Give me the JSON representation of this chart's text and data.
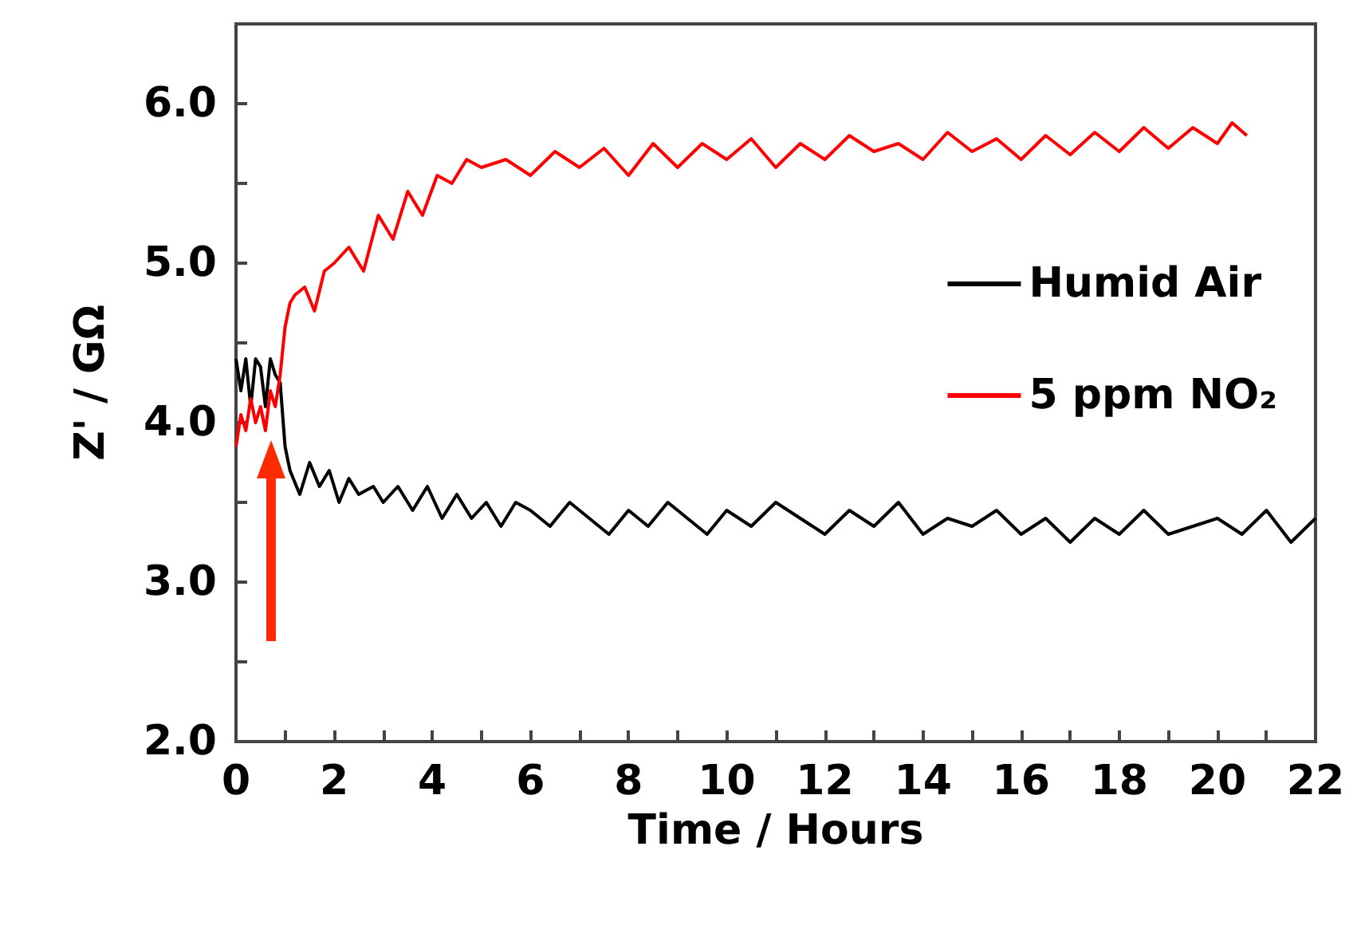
{
  "chart_data": {
    "type": "line",
    "xlabel": "Time / Hours",
    "ylabel": "Z' / GΩ",
    "xlim": [
      0,
      22
    ],
    "xticks": [
      0,
      {
        "value": 1,
        "label": null
      },
      2,
      {
        "value": 3,
        "label": null
      },
      4,
      {
        "value": 5,
        "label": null
      },
      6,
      {
        "value": 7,
        "label": null
      },
      8,
      {
        "value": 9,
        "label": null
      },
      10,
      {
        "value": 11,
        "label": null
      },
      12,
      {
        "value": 13,
        "label": null
      },
      14,
      {
        "value": 15,
        "label": null
      },
      16,
      {
        "value": 17,
        "label": null
      },
      18,
      {
        "value": 19,
        "label": null
      },
      20,
      {
        "value": 21,
        "label": null
      },
      22
    ],
    "ylim": [
      2,
      6.5
    ],
    "yticks": [
      {
        "value": 2,
        "label": "2.0"
      },
      {
        "value": 2.5,
        "label": null
      },
      {
        "value": 3,
        "label": "3.0"
      },
      {
        "value": 3.5,
        "label": null
      },
      {
        "value": 4,
        "label": "4.0"
      },
      {
        "value": 4.5,
        "label": null
      },
      {
        "value": 5,
        "label": "5.0"
      },
      {
        "value": 5.5,
        "label": null
      },
      {
        "value": 6,
        "label": "6.0"
      }
    ],
    "grid": false,
    "legend": "right",
    "marker": "none",
    "line_style": "solid",
    "series": [
      {
        "name": "Humid Air",
        "color": "#000000",
        "x": [
          0,
          0.1,
          0.2,
          0.3,
          0.4,
          0.5,
          0.6,
          0.7,
          0.8,
          0.9,
          1.0,
          1.1,
          1.3,
          1.5,
          1.7,
          1.9,
          2.1,
          2.3,
          2.5,
          2.8,
          3.0,
          3.3,
          3.6,
          3.9,
          4.2,
          4.5,
          4.8,
          5.1,
          5.4,
          5.7,
          6.0,
          6.4,
          6.8,
          7.2,
          7.6,
          8.0,
          8.4,
          8.8,
          9.2,
          9.6,
          10,
          10.5,
          11,
          11.5,
          12,
          12.5,
          13,
          13.5,
          14,
          14.5,
          15,
          15.5,
          16,
          16.5,
          17,
          17.5,
          18,
          18.5,
          19,
          19.5,
          20,
          20.5,
          21,
          21.5,
          22
        ],
        "values": [
          4.4,
          4.2,
          4.4,
          4.1,
          4.4,
          4.35,
          4.1,
          4.4,
          4.3,
          4.25,
          3.85,
          3.7,
          3.55,
          3.75,
          3.6,
          3.7,
          3.5,
          3.65,
          3.55,
          3.6,
          3.5,
          3.6,
          3.45,
          3.6,
          3.4,
          3.55,
          3.4,
          3.5,
          3.35,
          3.5,
          3.45,
          3.35,
          3.5,
          3.4,
          3.3,
          3.45,
          3.35,
          3.5,
          3.4,
          3.3,
          3.45,
          3.35,
          3.5,
          3.4,
          3.3,
          3.45,
          3.35,
          3.5,
          3.3,
          3.4,
          3.35,
          3.45,
          3.3,
          3.4,
          3.25,
          3.4,
          3.3,
          3.45,
          3.3,
          3.35,
          3.4,
          3.3,
          3.45,
          3.25,
          3.4
        ]
      },
      {
        "name": "5 ppm NO₂",
        "color": "#ff0000",
        "x": [
          0,
          0.1,
          0.2,
          0.3,
          0.4,
          0.5,
          0.6,
          0.7,
          0.8,
          0.9,
          1.0,
          1.1,
          1.2,
          1.4,
          1.6,
          1.8,
          2.0,
          2.3,
          2.6,
          2.9,
          3.2,
          3.5,
          3.8,
          4.1,
          4.4,
          4.7,
          5.0,
          5.5,
          6.0,
          6.5,
          7.0,
          7.5,
          8,
          8.5,
          9,
          9.5,
          10,
          10.5,
          11,
          11.5,
          12,
          12.5,
          13,
          13.5,
          14,
          14.5,
          15,
          15.5,
          16,
          16.5,
          17,
          17.5,
          18,
          18.5,
          19,
          19.5,
          20,
          20.3,
          20.6
        ],
        "values": [
          3.85,
          4.05,
          3.95,
          4.15,
          4.0,
          4.1,
          3.95,
          4.2,
          4.1,
          4.3,
          4.6,
          4.75,
          4.8,
          4.85,
          4.7,
          4.95,
          5.0,
          5.1,
          4.95,
          5.3,
          5.15,
          5.45,
          5.3,
          5.55,
          5.5,
          5.65,
          5.6,
          5.65,
          5.55,
          5.7,
          5.6,
          5.72,
          5.55,
          5.75,
          5.6,
          5.75,
          5.65,
          5.78,
          5.6,
          5.75,
          5.65,
          5.8,
          5.7,
          5.75,
          5.65,
          5.82,
          5.7,
          5.78,
          5.65,
          5.8,
          5.68,
          5.82,
          5.7,
          5.85,
          5.72,
          5.85,
          5.75,
          5.88,
          5.8
        ]
      }
    ]
  }
}
